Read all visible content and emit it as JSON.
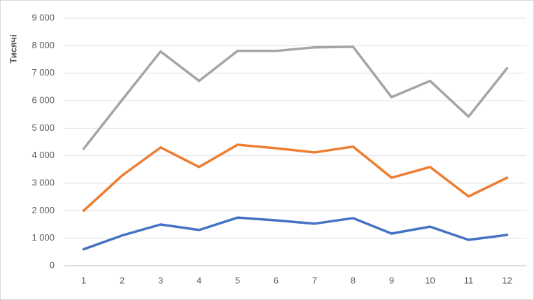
{
  "chart_data": {
    "type": "line",
    "y_label": "Тисячі",
    "categories": [
      "1",
      "2",
      "3",
      "4",
      "5",
      "6",
      "7",
      "8",
      "9",
      "10",
      "11",
      "12"
    ],
    "series": [
      {
        "color": "#4472c4",
        "values": [
          600,
          1100,
          1500,
          1300,
          1750,
          1650,
          1530,
          1730,
          1170,
          1420,
          940,
          1120
        ]
      },
      {
        "color": "#ed7d31",
        "values": [
          2000,
          3280,
          4300,
          3590,
          4400,
          4270,
          4120,
          4330,
          3200,
          3590,
          2520,
          3200
        ]
      },
      {
        "color": "#a5a5a5",
        "values": [
          4250,
          6030,
          7790,
          6720,
          7810,
          7810,
          7940,
          7960,
          6130,
          6720,
          5420,
          7180
        ]
      }
    ],
    "ylim": [
      0,
      9000
    ],
    "yticks": [
      0,
      {
        "value": 1000,
        "label": "1 000"
      },
      {
        "value": 2000,
        "label": "2 000"
      },
      {
        "value": 3000,
        "label": "3 000"
      },
      {
        "value": 4000,
        "label": "4 000"
      },
      {
        "value": 5000,
        "label": "5 000"
      },
      {
        "value": 6000,
        "label": "6 000"
      },
      {
        "value": 7000,
        "label": "7 000"
      },
      {
        "value": 8000,
        "label": "8 000"
      },
      {
        "value": 9000,
        "label": "9 000"
      }
    ],
    "grid": true
  }
}
